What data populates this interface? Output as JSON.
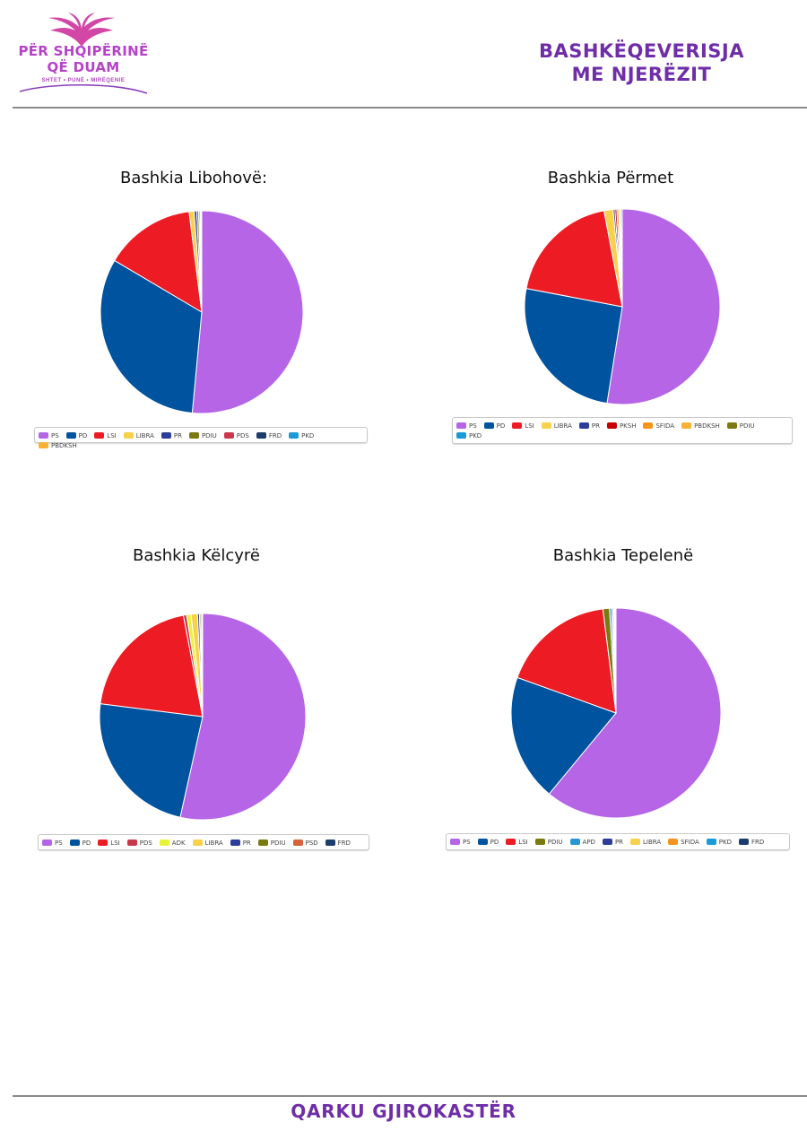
{
  "header": {
    "logo_line1": "PËR SHQIPËRINË",
    "logo_line2": "QË DUAM",
    "logo_tagline": "SHTET • PUNË • MIRËQENIE",
    "title_line1": "BASHKËQEVERISJA",
    "title_line2": "ME NJERËZIT"
  },
  "footer": {
    "title": "QARKU GJIROKASTËR"
  },
  "colors": {
    "PS": "#b565e6",
    "PD": "#00539f",
    "LSI": "#ed1c24",
    "LIBRA": "#f7d14a",
    "PR": "#2c3e9a",
    "PDIU": "#7a7a10",
    "PDS": "#c8384a",
    "FRD": "#1c3c6c",
    "PKD": "#1a9ad6",
    "PBDKSH": "#f9b233",
    "PKSH": "#c40000",
    "SFIDA": "#f7941d",
    "ADK": "#e8f23a",
    "PSD": "#d9603b",
    "APD": "#2a97d4",
    "brand": "#6f2da8"
  },
  "chart_data": [
    {
      "type": "pie",
      "title": "Bashkia Libohovë:",
      "categories": [
        "PS",
        "PD",
        "LSI",
        "LIBRA",
        "PR",
        "PDIU",
        "PDS",
        "FRD",
        "PKD",
        "PBDKSH"
      ],
      "values": [
        51.5,
        32.0,
        14.5,
        0.8,
        0.4,
        0.3,
        0.2,
        0.1,
        0.1,
        0.1
      ]
    },
    {
      "type": "pie",
      "title": "Bashkia Përmet",
      "categories": [
        "PS",
        "PD",
        "LSI",
        "LIBRA",
        "PR",
        "PKSH",
        "SFIDA",
        "PBDKSH",
        "PDIU",
        "PKD"
      ],
      "values": [
        52.5,
        25.5,
        19.0,
        1.5,
        0.3,
        0.3,
        0.3,
        0.2,
        0.2,
        0.2
      ]
    },
    {
      "type": "pie",
      "title": "Bashkia Këlcyrë",
      "categories": [
        "PS",
        "PD",
        "LSI",
        "PDS",
        "ADK",
        "LIBRA",
        "PR",
        "PDIU",
        "PSD",
        "FRD"
      ],
      "values": [
        53.5,
        23.5,
        20.0,
        0.5,
        0.7,
        1.0,
        0.3,
        0.2,
        0.2,
        0.1
      ]
    },
    {
      "type": "pie",
      "title": "Bashkia Tepelenë",
      "categories": [
        "PS",
        "PD",
        "LSI",
        "PDIU",
        "APD",
        "PR",
        "LIBRA",
        "SFIDA",
        "PKD",
        "FRD"
      ],
      "values": [
        61.0,
        19.5,
        17.5,
        1.0,
        0.3,
        0.2,
        0.2,
        0.1,
        0.1,
        0.1
      ]
    }
  ]
}
